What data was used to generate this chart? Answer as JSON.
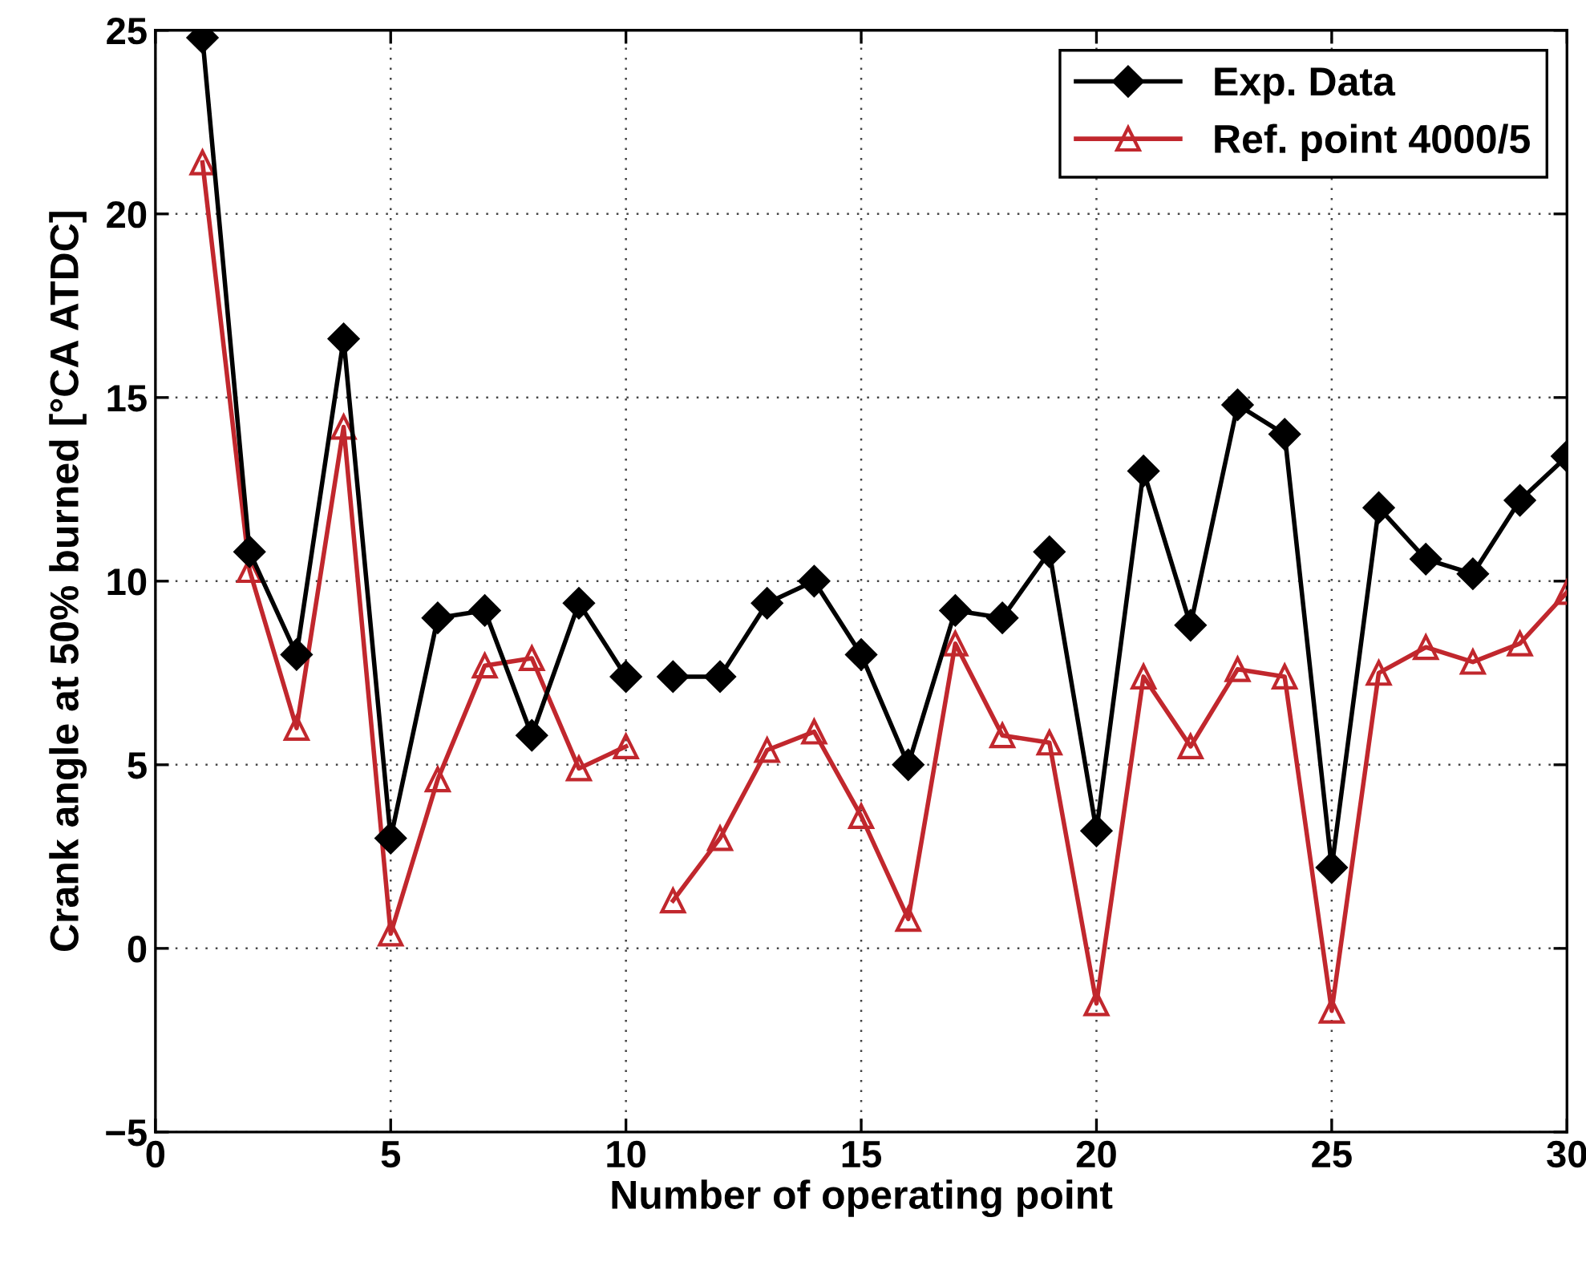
{
  "chart_data": {
    "type": "line",
    "xlabel": "Number of operating point",
    "ylabel": "Crank angle at 50% burned [°CA ATDC]",
    "x": [
      1,
      2,
      3,
      4,
      5,
      6,
      7,
      8,
      9,
      10,
      10.5,
      11,
      12,
      13,
      14,
      15,
      16,
      17,
      18,
      19,
      20,
      21,
      22,
      23,
      24,
      25,
      26,
      27,
      28,
      29,
      30
    ],
    "series": [
      {
        "name": "Exp. Data",
        "color": "#000000",
        "marker": "diamond",
        "values": [
          24.8,
          10.8,
          8.0,
          16.6,
          3.0,
          9.0,
          9.2,
          5.8,
          9.4,
          7.4,
          null,
          7.4,
          7.4,
          9.4,
          10.0,
          8.0,
          5.0,
          9.2,
          9.0,
          10.8,
          3.2,
          13.0,
          8.8,
          14.8,
          14.0,
          2.2,
          12.0,
          10.6,
          10.2,
          12.2,
          13.4
        ]
      },
      {
        "name": "Ref. point 4000/5",
        "color": "#c1272d",
        "marker": "triangle",
        "values": [
          21.4,
          10.3,
          6.0,
          14.2,
          0.4,
          4.6,
          7.7,
          7.9,
          4.9,
          5.5,
          null,
          1.3,
          3.0,
          5.4,
          5.9,
          3.6,
          0.8,
          8.3,
          5.8,
          5.6,
          -1.5,
          7.4,
          5.5,
          7.6,
          7.4,
          -1.7,
          7.5,
          8.2,
          7.8,
          8.3,
          9.7
        ]
      }
    ],
    "xlim": [
      0,
      30
    ],
    "xticks": [
      0,
      5,
      10,
      15,
      20,
      25,
      30
    ],
    "ylim": [
      -5,
      25
    ],
    "yticks": [
      {
        "value": -5,
        "label": "−5"
      },
      0,
      5,
      10,
      15,
      20,
      25
    ],
    "grid": true,
    "legend": "top right",
    "line_style": "solid"
  }
}
